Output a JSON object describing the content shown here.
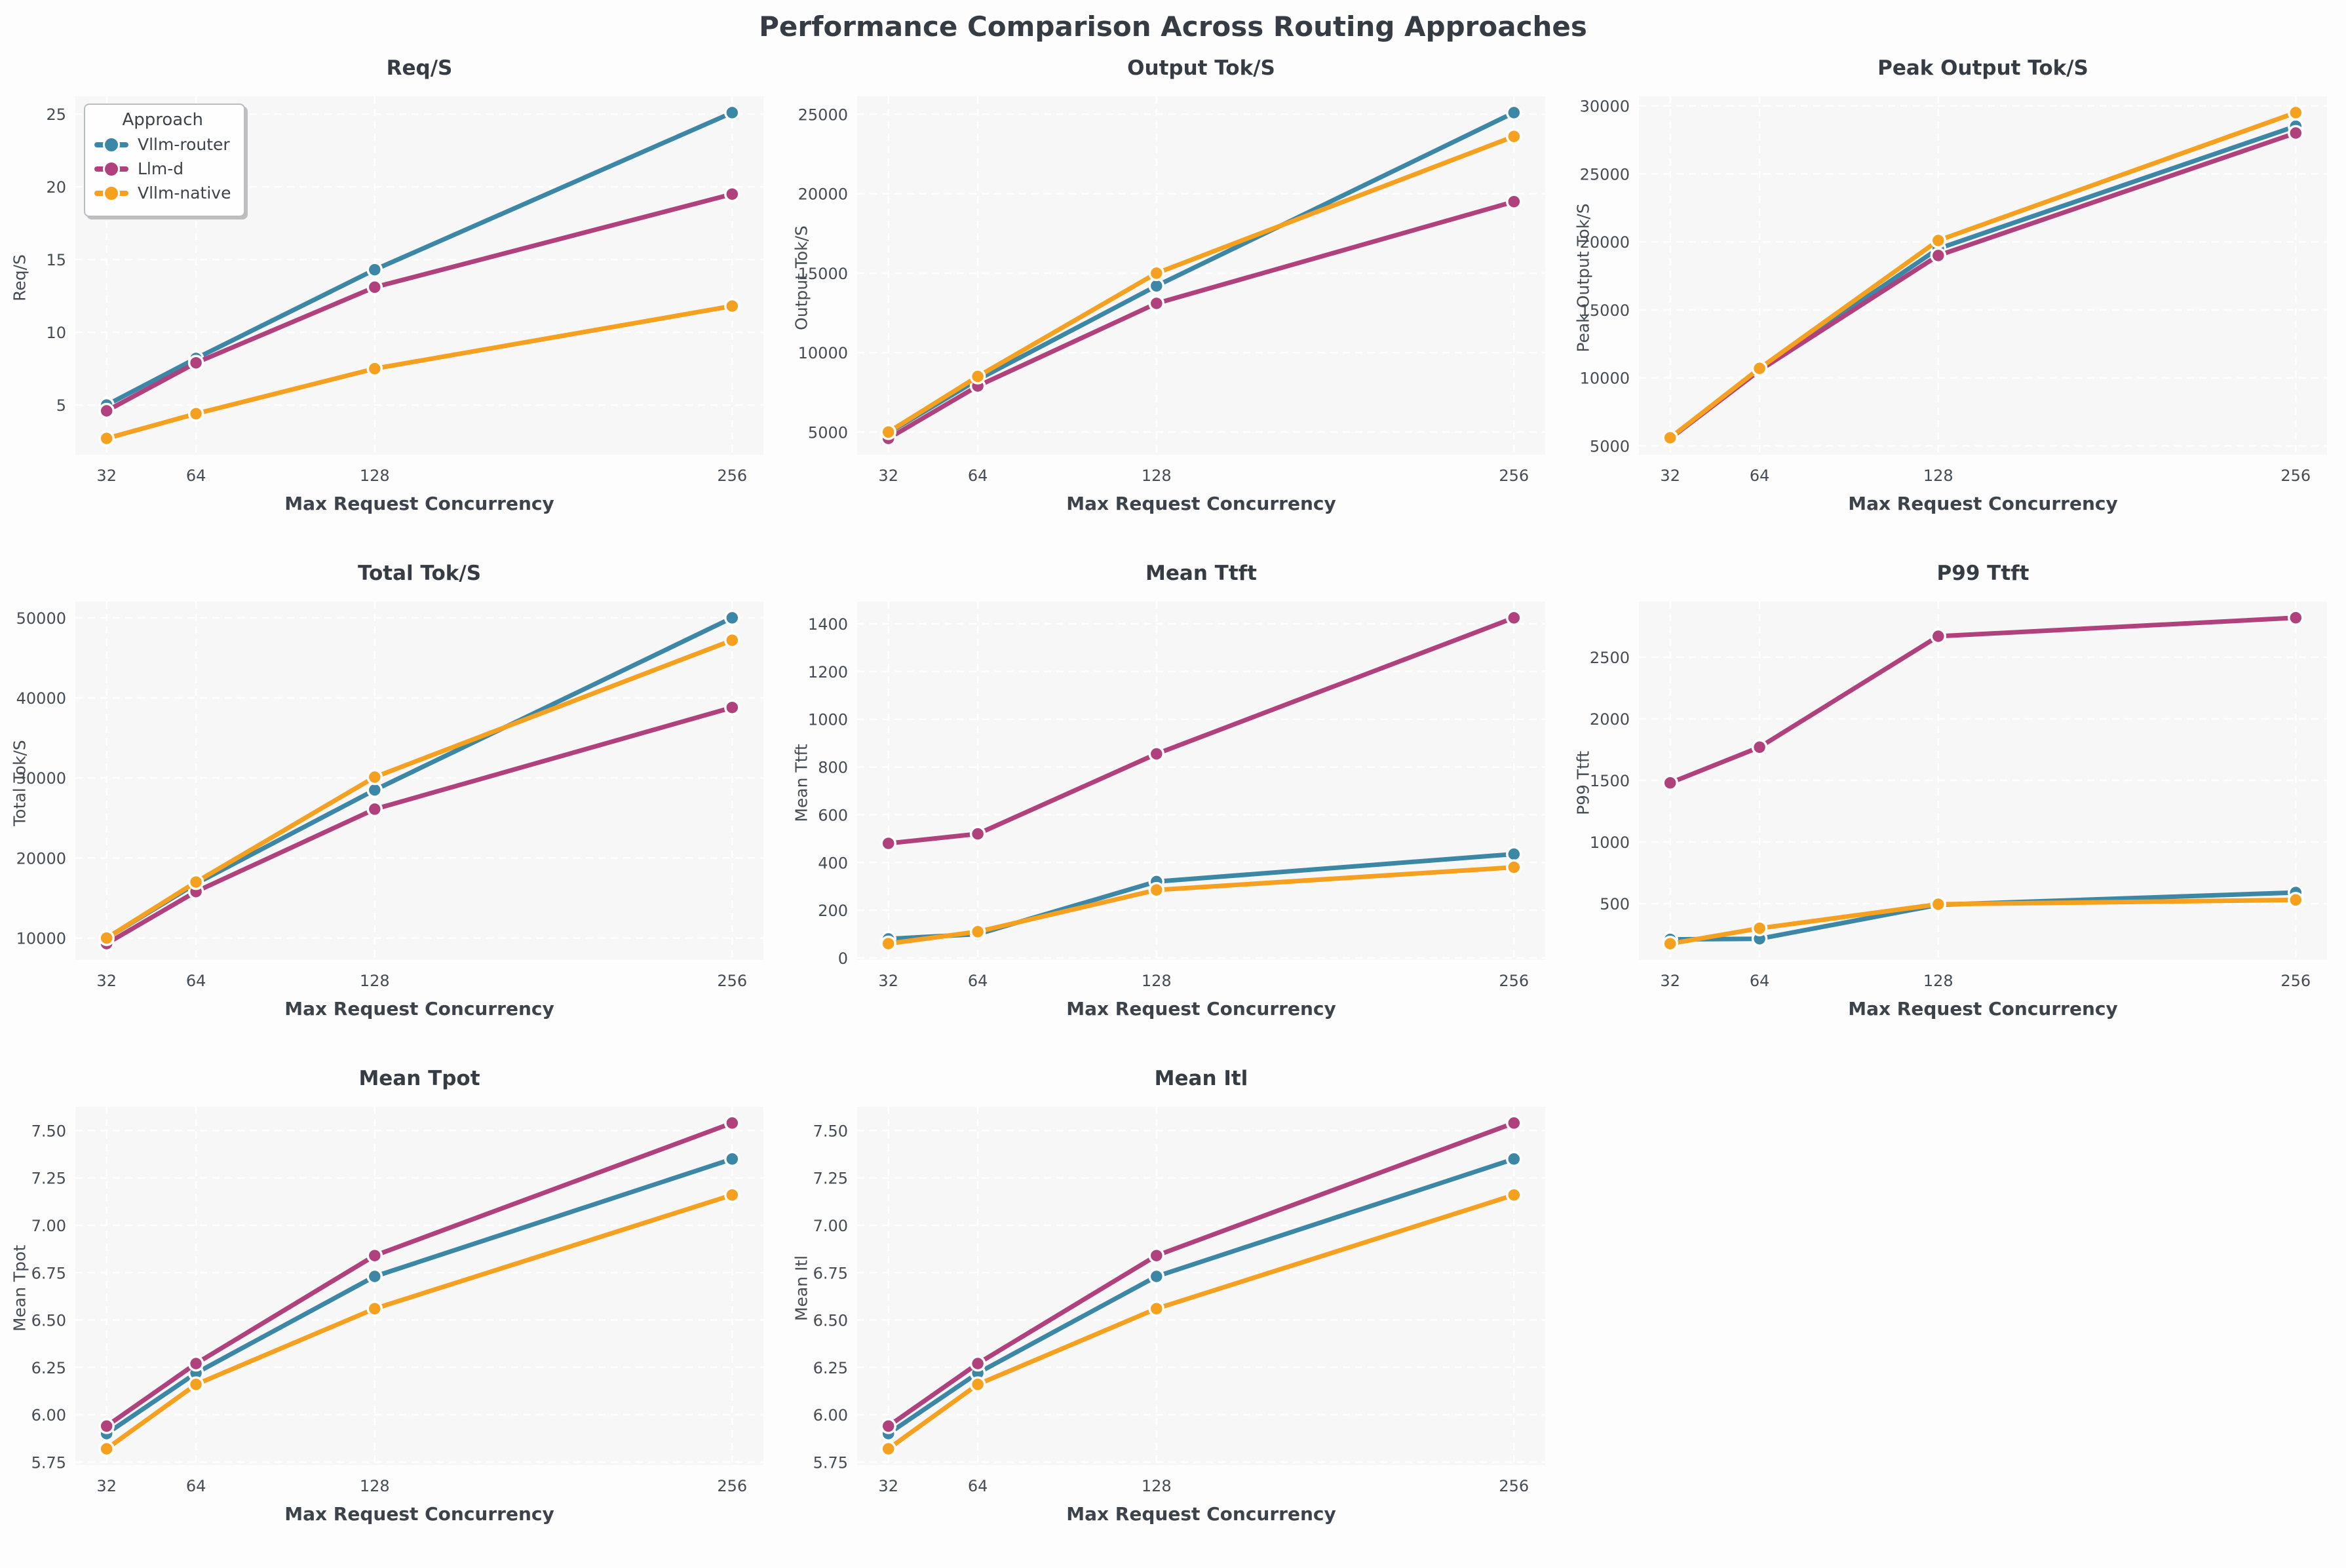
{
  "page_title": "Performance Comparison Across Routing Approaches",
  "x_axis_label": "Max Request Concurrency",
  "legend": {
    "title": "Approach",
    "items": [
      {
        "label": "Vllm-router",
        "color": "#3d87a6"
      },
      {
        "label": "Llm-d",
        "color": "#b0417c"
      },
      {
        "label": "Vllm-native",
        "color": "#f6a020"
      }
    ]
  },
  "chart_data": [
    {
      "type": "line",
      "title": "Req/S",
      "ylabel": "Req/S",
      "xlabel": "Max Request Concurrency",
      "x": [
        32,
        64,
        128,
        256
      ],
      "xtick_labels": [
        "32",
        "64",
        "128",
        "256"
      ],
      "xlim": [
        20.8,
        267.2
      ],
      "ylim": [
        1.58,
        26.22
      ],
      "ytick_vals": [
        5,
        10,
        15,
        20,
        25
      ],
      "ytick_labels": [
        "5",
        "10",
        "15",
        "20",
        "25"
      ],
      "grid": true,
      "legend_position": "upper-left",
      "series": [
        {
          "name": "Vllm-router",
          "values": [
            5.0,
            8.2,
            14.3,
            25.1
          ]
        },
        {
          "name": "Llm-d",
          "values": [
            4.6,
            7.9,
            13.1,
            19.5
          ]
        },
        {
          "name": "Vllm-native",
          "values": [
            2.7,
            4.4,
            7.5,
            11.8
          ]
        }
      ]
    },
    {
      "type": "line",
      "title": "Output Tok/S",
      "ylabel": "Output Tok/S",
      "xlabel": "Max Request Concurrency",
      "x": [
        32,
        64,
        128,
        256
      ],
      "xtick_labels": [
        "32",
        "64",
        "128",
        "256"
      ],
      "xlim": [
        20.8,
        267.2
      ],
      "ylim": [
        3575,
        26125
      ],
      "ytick_vals": [
        5000,
        10000,
        15000,
        20000,
        25000
      ],
      "ytick_labels": [
        "5000",
        "10000",
        "15000",
        "20000",
        "25000"
      ],
      "grid": true,
      "series": [
        {
          "name": "Vllm-router",
          "values": [
            4950,
            8300,
            14200,
            25100
          ]
        },
        {
          "name": "Llm-d",
          "values": [
            4600,
            7900,
            13100,
            19500
          ]
        },
        {
          "name": "Vllm-native",
          "values": [
            5000,
            8500,
            15000,
            23600
          ]
        }
      ]
    },
    {
      "type": "line",
      "title": "Peak Output Tok/S",
      "ylabel": "Peak Output Tok/S",
      "xlabel": "Max Request Concurrency",
      "x": [
        32,
        64,
        128,
        256
      ],
      "xtick_labels": [
        "32",
        "64",
        "128",
        "256"
      ],
      "xlim": [
        20.8,
        267.2
      ],
      "ylim": [
        4352,
        30698
      ],
      "ytick_vals": [
        5000,
        10000,
        15000,
        20000,
        25000,
        30000
      ],
      "ytick_labels": [
        "5000",
        "10000",
        "15000",
        "20000",
        "25000",
        "30000"
      ],
      "grid": true,
      "series": [
        {
          "name": "Vllm-router",
          "values": [
            5600,
            10600,
            19500,
            28500
          ]
        },
        {
          "name": "Llm-d",
          "values": [
            5550,
            10550,
            19000,
            28000
          ]
        },
        {
          "name": "Vllm-native",
          "values": [
            5600,
            10700,
            20100,
            29500
          ]
        }
      ]
    },
    {
      "type": "line",
      "title": "Total Tok/S",
      "ylabel": "Total Tok/S",
      "xlabel": "Max Request Concurrency",
      "x": [
        32,
        64,
        128,
        256
      ],
      "xtick_labels": [
        "32",
        "64",
        "128",
        "256"
      ],
      "xlim": [
        20.8,
        267.2
      ],
      "ylim": [
        7265,
        52035
      ],
      "ytick_vals": [
        10000,
        20000,
        30000,
        40000,
        50000
      ],
      "ytick_labels": [
        "10000",
        "20000",
        "30000",
        "40000",
        "50000"
      ],
      "grid": true,
      "series": [
        {
          "name": "Vllm-router",
          "values": [
            10000,
            16800,
            28500,
            50000
          ]
        },
        {
          "name": "Llm-d",
          "values": [
            9300,
            15800,
            26100,
            38800
          ]
        },
        {
          "name": "Vllm-native",
          "values": [
            10000,
            17000,
            30100,
            47200
          ]
        }
      ]
    },
    {
      "type": "line",
      "title": "Mean Ttft",
      "ylabel": "Mean Ttft",
      "xlabel": "Max Request Concurrency",
      "x": [
        32,
        64,
        128,
        256
      ],
      "xtick_labels": [
        "32",
        "64",
        "128",
        "256"
      ],
      "xlim": [
        20.8,
        267.2
      ],
      "ylim": [
        -8.25,
        1493.25
      ],
      "ytick_vals": [
        0,
        200,
        400,
        600,
        800,
        1000,
        1200,
        1400
      ],
      "ytick_labels": [
        "0",
        "200",
        "400",
        "600",
        "800",
        "1000",
        "1200",
        "1400"
      ],
      "grid": true,
      "series": [
        {
          "name": "Vllm-router",
          "values": [
            80,
            100,
            320,
            435
          ]
        },
        {
          "name": "Llm-d",
          "values": [
            480,
            520,
            855,
            1425
          ]
        },
        {
          "name": "Vllm-native",
          "values": [
            60,
            110,
            285,
            380
          ]
        }
      ]
    },
    {
      "type": "line",
      "title": "P99 Ttft",
      "ylabel": "P99 Ttft",
      "xlabel": "Max Request Concurrency",
      "x": [
        32,
        64,
        128,
        256
      ],
      "xtick_labels": [
        "32",
        "64",
        "128",
        "256"
      ],
      "xlim": [
        20.8,
        267.2
      ],
      "ylim": [
        43,
        2952
      ],
      "ytick_vals": [
        500,
        1000,
        1500,
        2000,
        2500
      ],
      "ytick_labels": [
        "500",
        "1000",
        "1500",
        "2000",
        "2500"
      ],
      "grid": true,
      "series": [
        {
          "name": "Vllm-router",
          "values": [
            210,
            215,
            490,
            590
          ]
        },
        {
          "name": "Llm-d",
          "values": [
            1480,
            1770,
            2670,
            2820
          ]
        },
        {
          "name": "Vllm-native",
          "values": [
            175,
            300,
            495,
            530
          ]
        }
      ]
    },
    {
      "type": "line",
      "title": "Mean Tpot",
      "ylabel": "Mean Tpot",
      "xlabel": "Max Request Concurrency",
      "x": [
        32,
        64,
        128,
        256
      ],
      "xtick_labels": [
        "32",
        "64",
        "128",
        "256"
      ],
      "xlim": [
        20.8,
        267.2
      ],
      "ylim": [
        5.734,
        7.626
      ],
      "ytick_vals": [
        5.75,
        6.0,
        6.25,
        6.5,
        6.75,
        7.0,
        7.25,
        7.5
      ],
      "ytick_labels": [
        "5.75",
        "6.00",
        "6.25",
        "6.50",
        "6.75",
        "7.00",
        "7.25",
        "7.50"
      ],
      "grid": true,
      "series": [
        {
          "name": "Vllm-router",
          "values": [
            5.9,
            6.22,
            6.73,
            7.35
          ]
        },
        {
          "name": "Llm-d",
          "values": [
            5.94,
            6.27,
            6.84,
            7.54
          ]
        },
        {
          "name": "Vllm-native",
          "values": [
            5.82,
            6.16,
            6.56,
            7.16
          ]
        }
      ]
    },
    {
      "type": "line",
      "title": "Mean Itl",
      "ylabel": "Mean Itl",
      "xlabel": "Max Request Concurrency",
      "x": [
        32,
        64,
        128,
        256
      ],
      "xtick_labels": [
        "32",
        "64",
        "128",
        "256"
      ],
      "xlim": [
        20.8,
        267.2
      ],
      "ylim": [
        5.734,
        7.626
      ],
      "ytick_vals": [
        5.75,
        6.0,
        6.25,
        6.5,
        6.75,
        7.0,
        7.25,
        7.5
      ],
      "ytick_labels": [
        "5.75",
        "6.00",
        "6.25",
        "6.50",
        "6.75",
        "7.00",
        "7.25",
        "7.50"
      ],
      "grid": true,
      "series": [
        {
          "name": "Vllm-router",
          "values": [
            5.9,
            6.22,
            6.73,
            7.35
          ]
        },
        {
          "name": "Llm-d",
          "values": [
            5.94,
            6.27,
            6.84,
            7.54
          ]
        },
        {
          "name": "Vllm-native",
          "values": [
            5.82,
            6.16,
            6.56,
            7.16
          ]
        }
      ]
    }
  ]
}
